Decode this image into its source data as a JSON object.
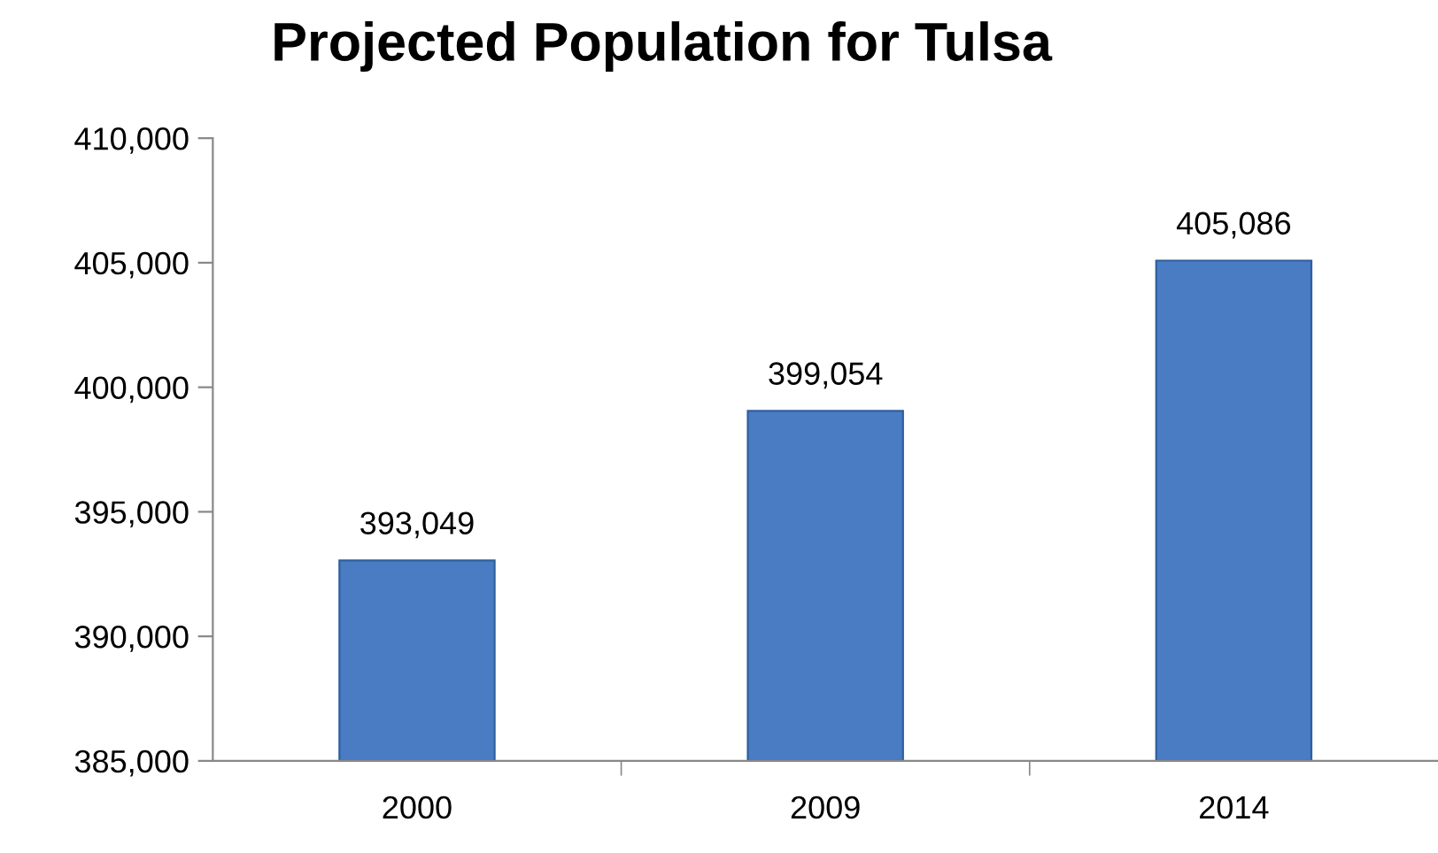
{
  "chart_data": {
    "type": "bar",
    "title": "Projected Population for Tulsa",
    "categories": [
      "2000",
      "2009",
      "2014"
    ],
    "values": [
      393049,
      399054,
      405086
    ],
    "value_labels": [
      "393,049",
      "399,054",
      "405,086"
    ],
    "color": "#4a7cc4",
    "ylim": [
      385000,
      410000
    ],
    "yticks": [
      {
        "value": 385000,
        "label": "385,000"
      },
      {
        "value": 390000,
        "label": "390,000"
      },
      {
        "value": 395000,
        "label": "395,000"
      },
      {
        "value": 400000,
        "label": "400,000"
      },
      {
        "value": 405000,
        "label": "405,000"
      },
      {
        "value": 410000,
        "label": "410,000"
      }
    ],
    "grid": false,
    "legend": false
  }
}
